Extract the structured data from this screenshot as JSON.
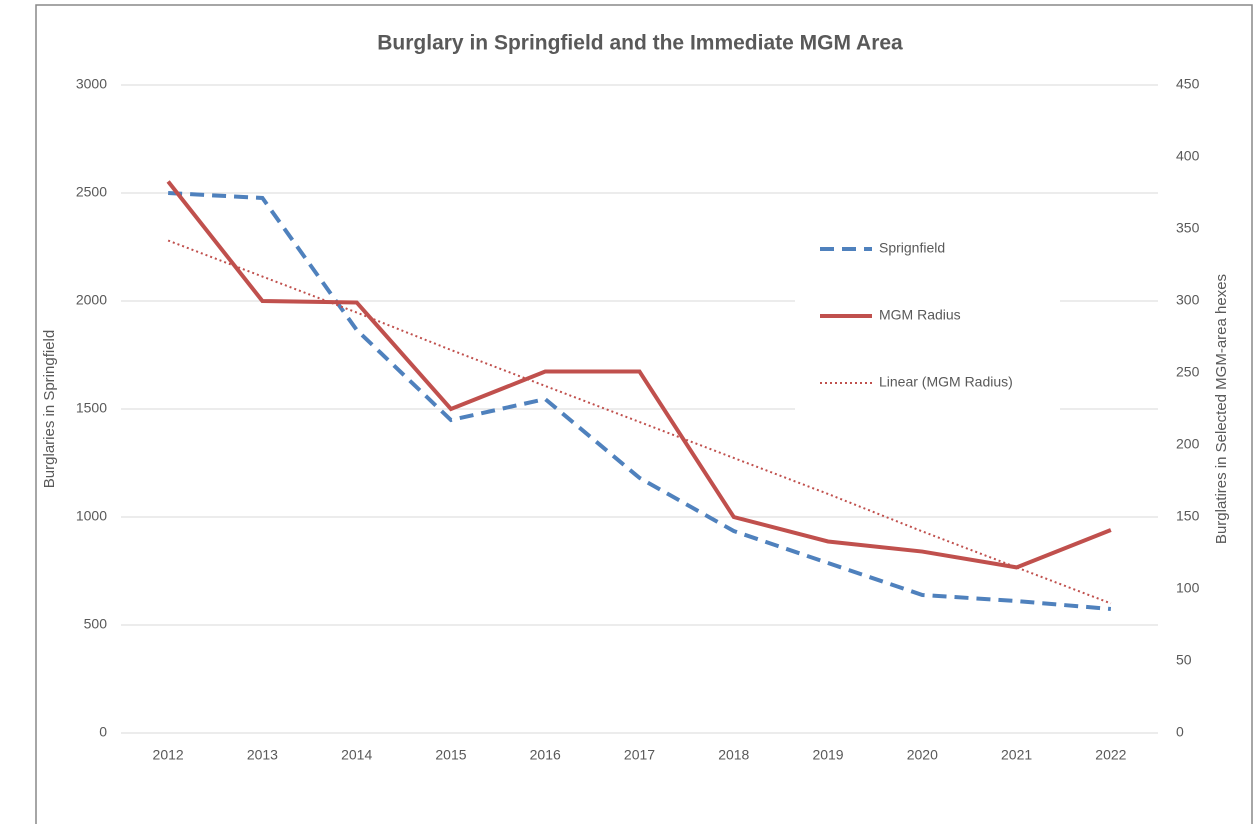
{
  "chart_data": {
    "type": "line",
    "title": "Burglary in Springfield and the Immediate MGM Area",
    "y_label": "Burglaries in Springfield",
    "y2_label": "Burglatires  in Selected MGM-area hexes",
    "categories": [
      "2012",
      "2013",
      "2014",
      "2015",
      "2016",
      "2017",
      "2018",
      "2019",
      "2020",
      "2021",
      "2022"
    ],
    "series": [
      {
        "name": "Sprignfield",
        "color": "#4f81bd",
        "style": "dashed",
        "axis": "y",
        "values": [
          2500,
          2477,
          1866,
          1449,
          1546,
          1181,
          935,
          787,
          639,
          611,
          574
        ]
      },
      {
        "name": "MGM Radius",
        "color": "#c0504d",
        "style": "solid",
        "axis": "y2",
        "values": [
          383,
          300,
          299,
          225,
          251,
          251,
          150,
          133,
          126,
          115,
          141
        ]
      },
      {
        "name": "Linear (MGM Radius)",
        "color": "#c0504d",
        "style": "dotted",
        "axis": "y2",
        "values": [
          342,
          317,
          292,
          266,
          241,
          216,
          191,
          166,
          140,
          115,
          90
        ]
      }
    ],
    "ylim": [
      0,
      3000
    ],
    "yticks": [
      0,
      500,
      1000,
      1500,
      2000,
      2500,
      3000
    ],
    "y2lim": [
      0,
      450
    ],
    "y2ticks": [
      0,
      50,
      100,
      150,
      200,
      250,
      300,
      350,
      400,
      450
    ],
    "grid": true,
    "legend": "right"
  }
}
